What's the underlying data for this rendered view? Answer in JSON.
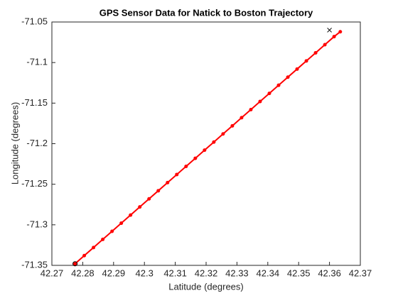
{
  "chart_data": {
    "type": "line",
    "title": "GPS Sensor Data for Natick to Boston Trajectory",
    "xlabel": "Latitude (degrees)",
    "ylabel": "Longitude (degrees)",
    "xlim": [
      42.27,
      42.37
    ],
    "xticks": [
      42.27,
      42.28,
      42.29,
      42.3,
      42.31,
      42.32,
      42.33,
      42.34,
      42.35,
      42.36,
      42.37
    ],
    "ylim": [
      -71.35,
      -71.05
    ],
    "yticks": [
      -71.35,
      -71.3,
      -71.25,
      -71.2,
      -71.15,
      -71.1,
      -71.05
    ],
    "series": [
      {
        "color": "#ff0000",
        "marker": "dot",
        "x": [
          42.2775,
          42.2805,
          42.2835,
          42.2865,
          42.2895,
          42.2925,
          42.2955,
          42.2985,
          42.3015,
          42.3045,
          42.3075,
          42.3105,
          42.3135,
          42.3165,
          42.3195,
          42.3225,
          42.3255,
          42.3285,
          42.3315,
          42.3345,
          42.3375,
          42.3405,
          42.3435,
          42.3465,
          42.3495,
          42.3525,
          42.3555,
          42.3585,
          42.3615,
          42.3635
        ],
        "values": [
          -71.348,
          -71.338,
          -71.328,
          -71.318,
          -71.308,
          -71.298,
          -71.288,
          -71.278,
          -71.268,
          -71.258,
          -71.248,
          -71.238,
          -71.228,
          -71.218,
          -71.208,
          -71.198,
          -71.188,
          -71.178,
          -71.168,
          -71.158,
          -71.148,
          -71.138,
          -71.128,
          -71.118,
          -71.108,
          -71.098,
          -71.088,
          -71.078,
          -71.068,
          -71.062
        ]
      },
      {
        "color": "#000000",
        "marker": "circle",
        "x": [
          42.2775
        ],
        "values": [
          -71.348
        ]
      },
      {
        "color": "#000000",
        "marker": "cross",
        "x": [
          42.36
        ],
        "values": [
          -71.06
        ]
      }
    ]
  }
}
